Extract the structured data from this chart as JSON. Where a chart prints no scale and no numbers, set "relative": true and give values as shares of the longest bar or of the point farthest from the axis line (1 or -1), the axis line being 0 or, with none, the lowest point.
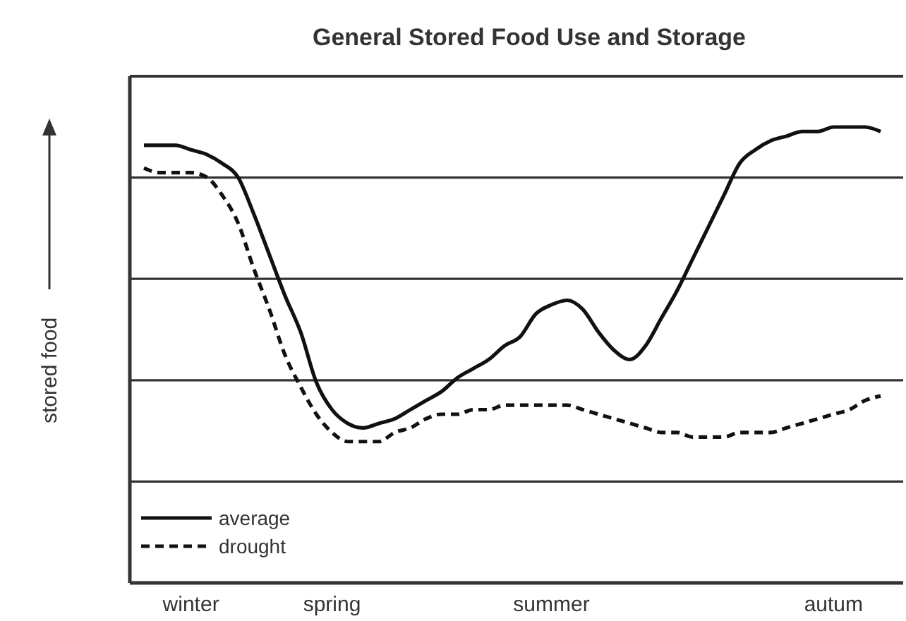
{
  "chart_data": {
    "type": "line",
    "title": "General Stored Food Use and Storage",
    "ylabel": "stored food",
    "relative": true,
    "grid": "y",
    "legend": "bottom left",
    "marker": "none",
    "categories": [
      null,
      null,
      null,
      "winter",
      null,
      null,
      null,
      null,
      null,
      null,
      null,
      null,
      "spring",
      null,
      null,
      null,
      null,
      null,
      null,
      null,
      null,
      null,
      null,
      null,
      null,
      null,
      "summer",
      null,
      null,
      null,
      null,
      null,
      null,
      null,
      null,
      null,
      null,
      null,
      null,
      null,
      null,
      null,
      null,
      null,
      "autum",
      null,
      null,
      null
    ],
    "series": [
      {
        "name": "average",
        "color": "#111111",
        "line_style": "solid",
        "values": [
          0.96,
          0.96,
          0.96,
          0.95,
          0.94,
          0.92,
          0.89,
          0.81,
          0.72,
          0.63,
          0.55,
          0.44,
          0.38,
          0.35,
          0.34,
          0.35,
          0.36,
          0.38,
          0.4,
          0.42,
          0.45,
          0.47,
          0.49,
          0.52,
          0.54,
          0.59,
          0.61,
          0.62,
          0.6,
          0.55,
          0.51,
          0.49,
          0.52,
          0.58,
          0.64,
          0.71,
          0.78,
          0.85,
          0.92,
          0.95,
          0.97,
          0.98,
          0.99,
          0.99,
          1.0,
          1.0,
          1.0,
          0.99
        ]
      },
      {
        "name": "drought",
        "color": "#111111",
        "line_style": "dashed",
        "values": [
          0.91,
          0.9,
          0.9,
          0.9,
          0.89,
          0.85,
          0.79,
          0.69,
          0.6,
          0.5,
          0.43,
          0.37,
          0.33,
          0.31,
          0.31,
          0.31,
          0.33,
          0.34,
          0.36,
          0.37,
          0.37,
          0.38,
          0.38,
          0.39,
          0.39,
          0.39,
          0.39,
          0.39,
          0.38,
          0.37,
          0.36,
          0.35,
          0.34,
          0.33,
          0.33,
          0.32,
          0.32,
          0.32,
          0.33,
          0.33,
          0.33,
          0.34,
          0.35,
          0.36,
          0.37,
          0.38,
          0.4,
          0.41
        ]
      }
    ]
  }
}
